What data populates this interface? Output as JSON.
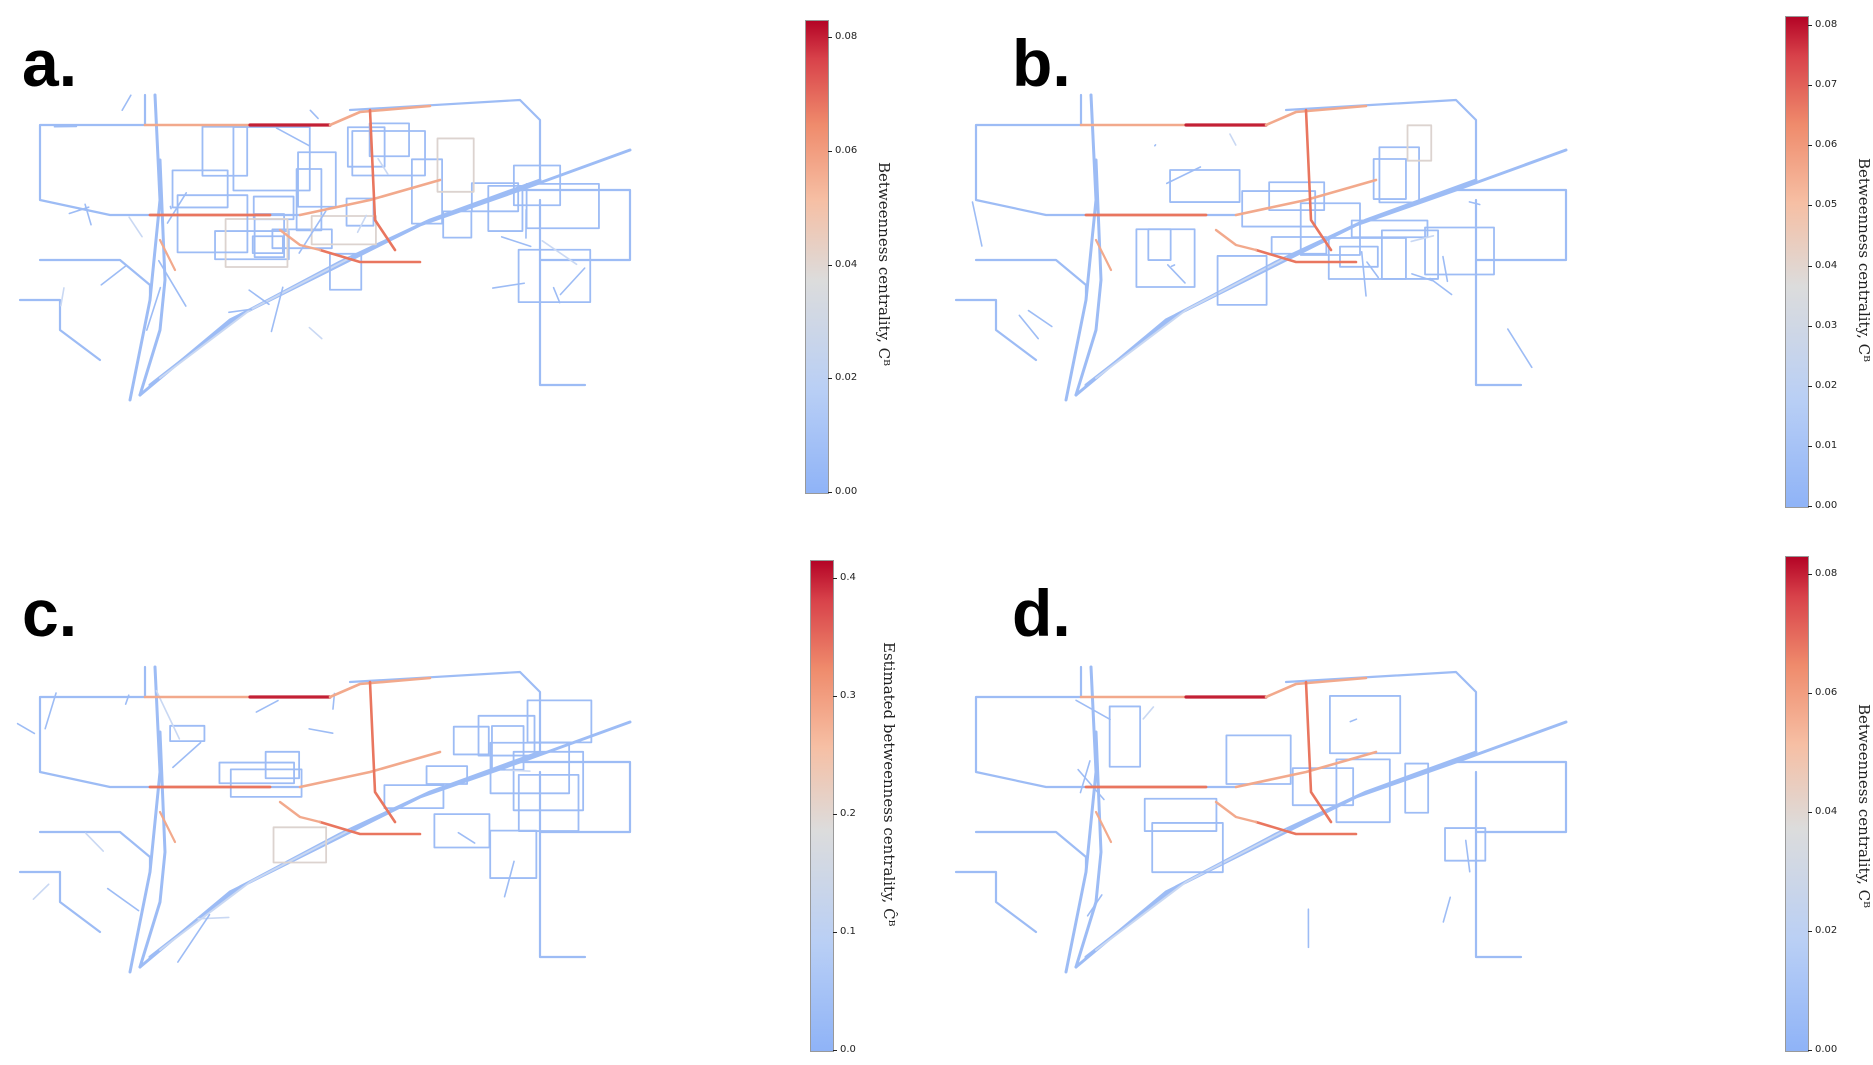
{
  "panels": [
    {
      "label": "a.",
      "colorbar": {
        "label": "Betweenness centrality, Cᴮ",
        "ticks": [
          "0.00",
          "0.02",
          "0.04",
          "0.06",
          "0.08"
        ]
      }
    },
    {
      "label": "b.",
      "colorbar": {
        "label": "Betweenness centrality, Cᴮ",
        "ticks": [
          "0.00",
          "0.01",
          "0.02",
          "0.03",
          "0.04",
          "0.05",
          "0.06",
          "0.07",
          "0.08"
        ]
      }
    },
    {
      "label": "c.",
      "colorbar": {
        "label": "Estimated betweenness centrality, Ĉᴮ",
        "ticks": [
          "0.0",
          "0.1",
          "0.2",
          "0.3",
          "0.4"
        ]
      }
    },
    {
      "label": "d.",
      "colorbar": {
        "label": "Betweenness centrality, Cᴮ",
        "ticks": [
          "0.00",
          "0.02",
          "0.04",
          "0.06",
          "0.08"
        ]
      }
    }
  ],
  "colors": {
    "low": "#8fb3f7",
    "mid": "#dcdcdc",
    "high": "#b40426"
  }
}
